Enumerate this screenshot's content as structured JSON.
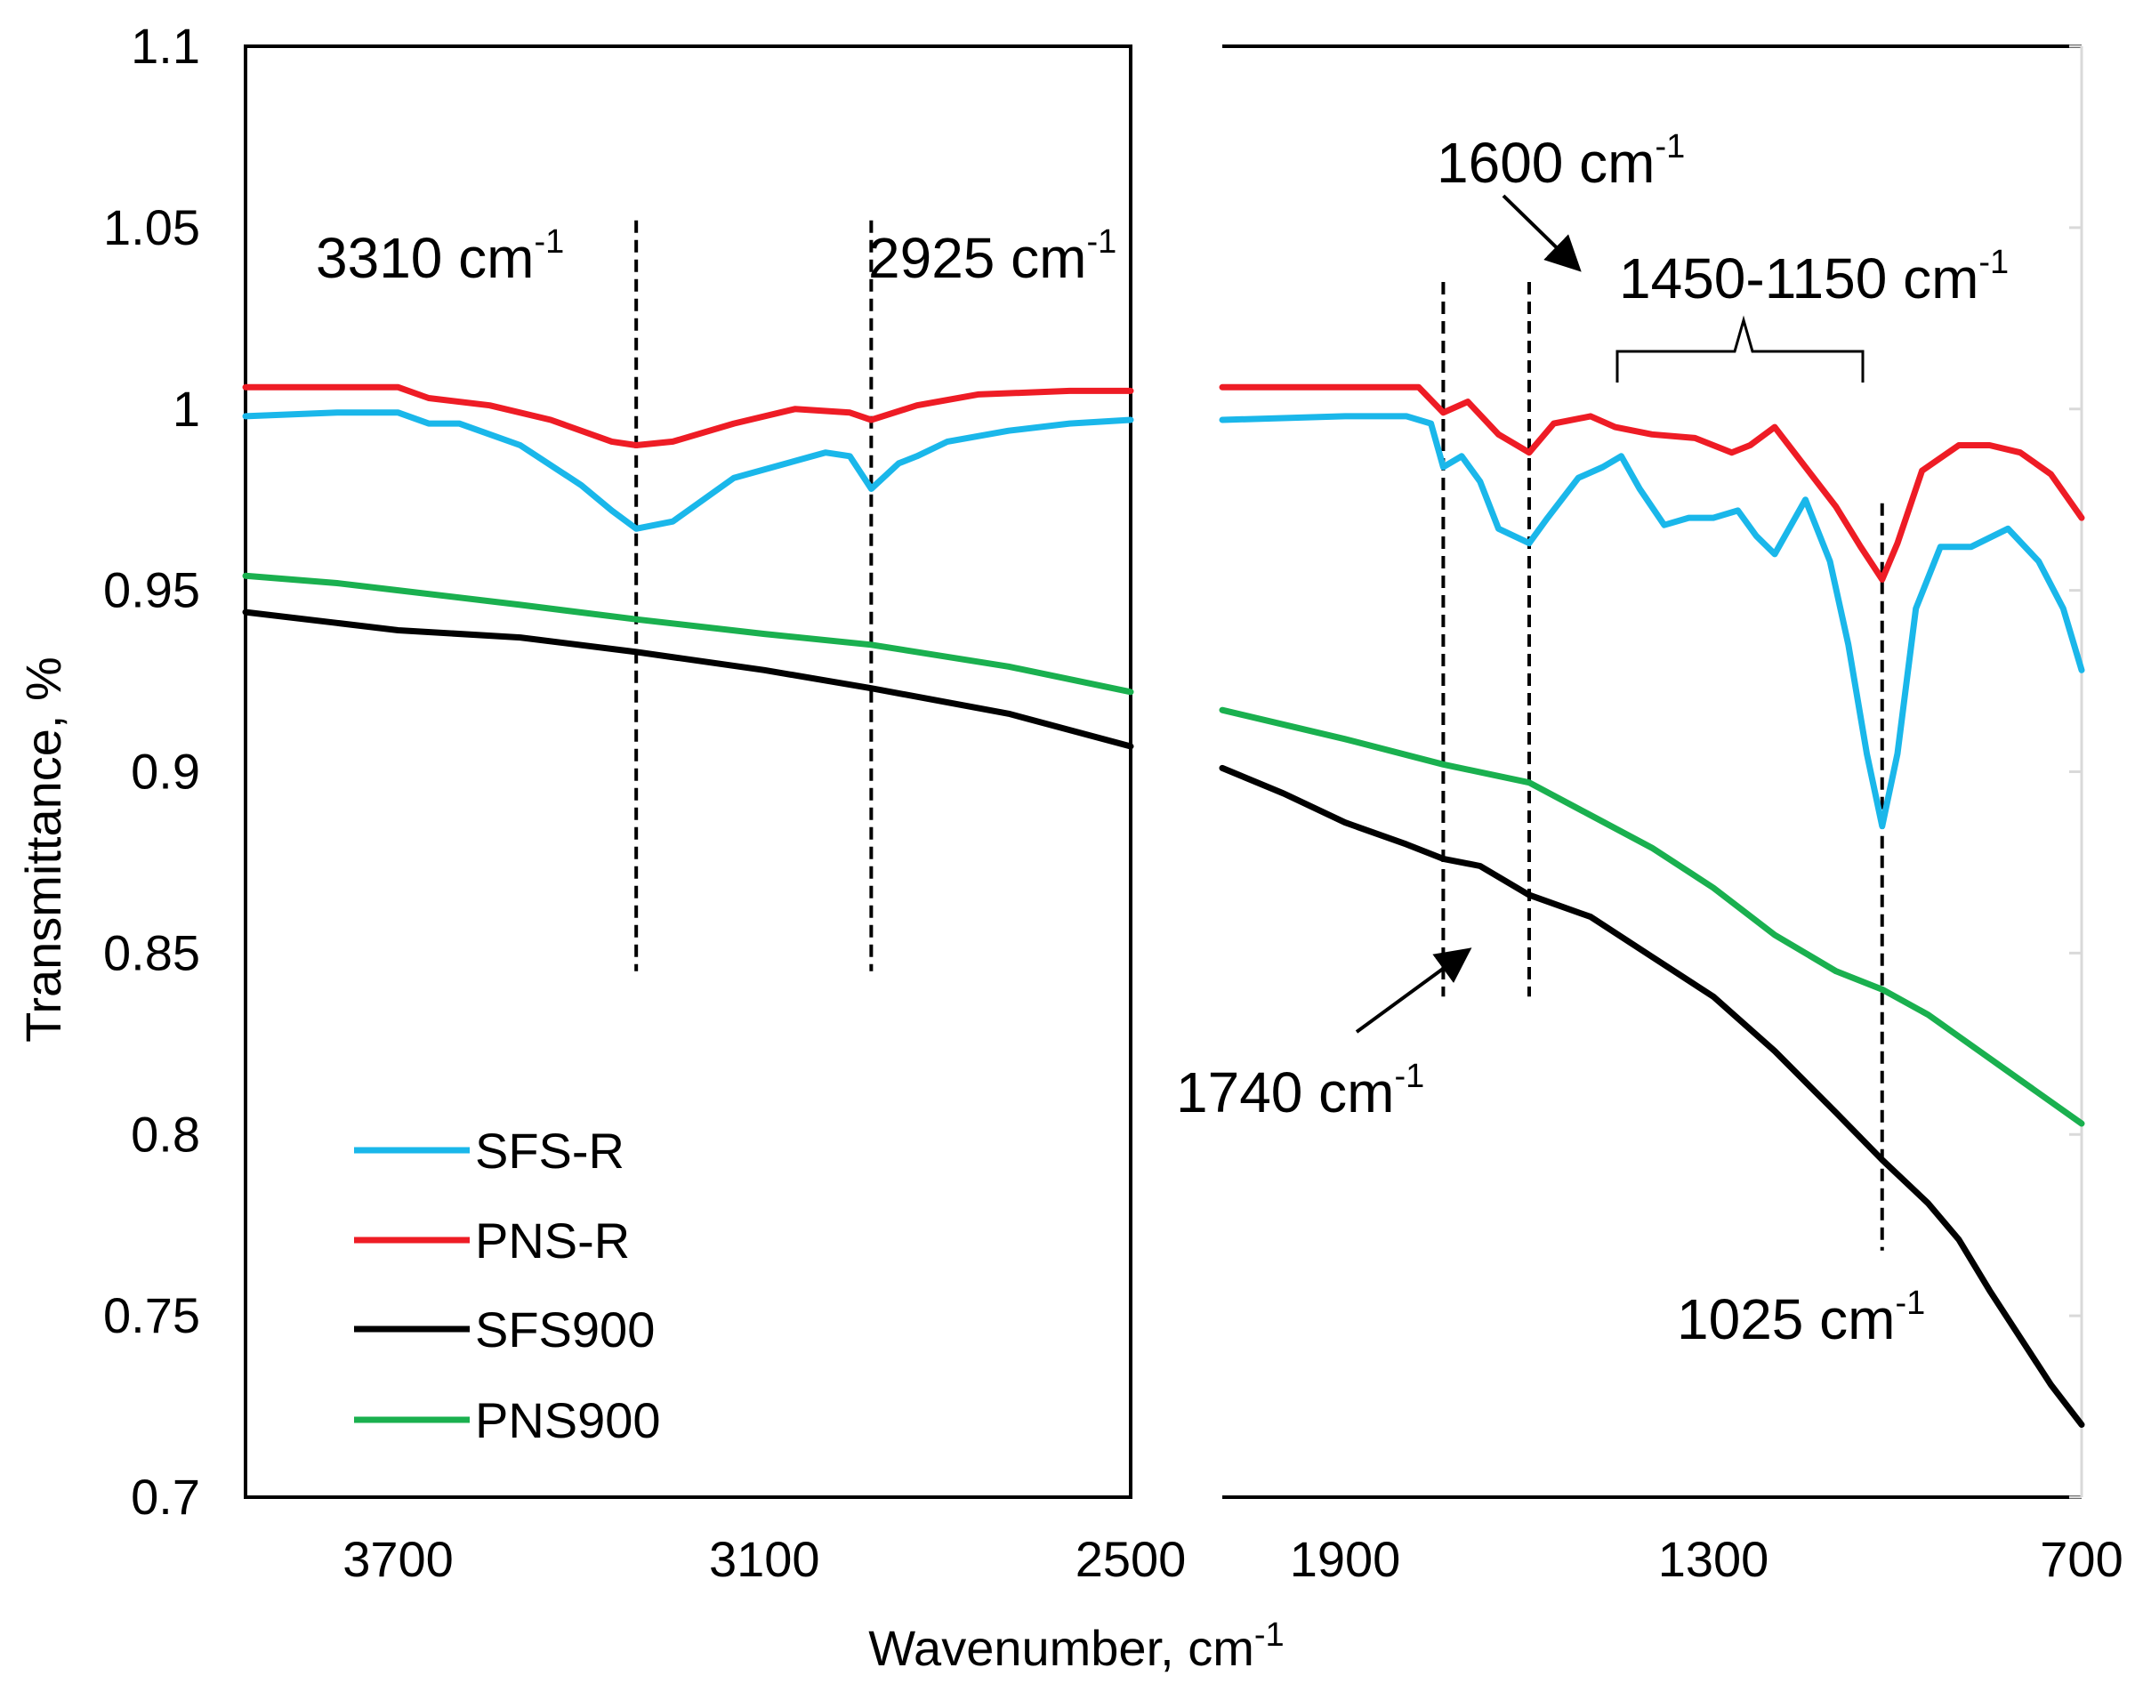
{
  "chart_data": {
    "type": "line",
    "title": "",
    "xlabel": "Wavenumber, cm",
    "xlabel_sup": "-1",
    "ylabel": "Transmittance, %",
    "ylim": [
      0.7,
      1.1
    ],
    "yticks": [
      "0.7",
      "0.75",
      "0.8",
      "0.85",
      "0.9",
      "0.95",
      "1",
      "1.05",
      "1.1"
    ],
    "panels": [
      {
        "name": "left",
        "xlim": [
          3950,
          2500
        ],
        "xticks": [
          {
            "value": 3700,
            "label": "3700"
          },
          {
            "value": 3100,
            "label": "3100"
          },
          {
            "value": 2500,
            "label": "2500"
          }
        ]
      },
      {
        "name": "right",
        "xlim": [
          2100,
          700
        ],
        "xticks": [
          {
            "value": 1900,
            "label": "1900"
          },
          {
            "value": 1300,
            "label": "1300"
          },
          {
            "value": 700,
            "label": "700"
          }
        ]
      }
    ],
    "series": [
      {
        "name": "SFS-R",
        "color": "#1ab7ea",
        "left": [
          [
            3950,
            0.998
          ],
          [
            3800,
            0.999
          ],
          [
            3700,
            0.999
          ],
          [
            3650,
            0.996
          ],
          [
            3600,
            0.996
          ],
          [
            3500,
            0.99
          ],
          [
            3400,
            0.979
          ],
          [
            3350,
            0.972
          ],
          [
            3310,
            0.967
          ],
          [
            3250,
            0.969
          ],
          [
            3150,
            0.981
          ],
          [
            3000,
            0.988
          ],
          [
            2960,
            0.987
          ],
          [
            2925,
            0.978
          ],
          [
            2880,
            0.985
          ],
          [
            2850,
            0.987
          ],
          [
            2800,
            0.991
          ],
          [
            2700,
            0.994
          ],
          [
            2600,
            0.996
          ],
          [
            2500,
            0.997
          ]
        ],
        "right": [
          [
            2100,
            0.997
          ],
          [
            1900,
            0.998
          ],
          [
            1800,
            0.998
          ],
          [
            1760,
            0.996
          ],
          [
            1740,
            0.984
          ],
          [
            1710,
            0.987
          ],
          [
            1680,
            0.98
          ],
          [
            1650,
            0.967
          ],
          [
            1600,
            0.963
          ],
          [
            1570,
            0.97
          ],
          [
            1520,
            0.981
          ],
          [
            1480,
            0.984
          ],
          [
            1450,
            0.987
          ],
          [
            1420,
            0.978
          ],
          [
            1380,
            0.968
          ],
          [
            1340,
            0.97
          ],
          [
            1300,
            0.97
          ],
          [
            1260,
            0.972
          ],
          [
            1230,
            0.965
          ],
          [
            1200,
            0.96
          ],
          [
            1150,
            0.975
          ],
          [
            1110,
            0.958
          ],
          [
            1080,
            0.935
          ],
          [
            1050,
            0.905
          ],
          [
            1025,
            0.885
          ],
          [
            1000,
            0.905
          ],
          [
            970,
            0.945
          ],
          [
            930,
            0.962
          ],
          [
            880,
            0.962
          ],
          [
            820,
            0.967
          ],
          [
            770,
            0.958
          ],
          [
            730,
            0.945
          ],
          [
            700,
            0.928
          ]
        ]
      },
      {
        "name": "PNS-R",
        "color": "#ee1c25",
        "left": [
          [
            3950,
            1.006
          ],
          [
            3800,
            1.006
          ],
          [
            3700,
            1.006
          ],
          [
            3650,
            1.003
          ],
          [
            3550,
            1.001
          ],
          [
            3450,
            0.997
          ],
          [
            3350,
            0.991
          ],
          [
            3310,
            0.99
          ],
          [
            3250,
            0.991
          ],
          [
            3150,
            0.996
          ],
          [
            3050,
            1.0
          ],
          [
            2960,
            0.999
          ],
          [
            2925,
            0.997
          ],
          [
            2850,
            1.001
          ],
          [
            2750,
            1.004
          ],
          [
            2600,
            1.005
          ],
          [
            2500,
            1.005
          ]
        ],
        "right": [
          [
            2100,
            1.006
          ],
          [
            1900,
            1.006
          ],
          [
            1780,
            1.006
          ],
          [
            1740,
            0.999
          ],
          [
            1700,
            1.002
          ],
          [
            1650,
            0.993
          ],
          [
            1600,
            0.988
          ],
          [
            1560,
            0.996
          ],
          [
            1500,
            0.998
          ],
          [
            1460,
            0.995
          ],
          [
            1400,
            0.993
          ],
          [
            1330,
            0.992
          ],
          [
            1270,
            0.988
          ],
          [
            1240,
            0.99
          ],
          [
            1200,
            0.995
          ],
          [
            1150,
            0.984
          ],
          [
            1100,
            0.973
          ],
          [
            1060,
            0.962
          ],
          [
            1025,
            0.953
          ],
          [
            1000,
            0.963
          ],
          [
            960,
            0.983
          ],
          [
            900,
            0.99
          ],
          [
            850,
            0.99
          ],
          [
            800,
            0.988
          ],
          [
            750,
            0.982
          ],
          [
            700,
            0.97
          ]
        ]
      },
      {
        "name": "SFS900",
        "color": "#000000",
        "left": [
          [
            3950,
            0.944
          ],
          [
            3800,
            0.941
          ],
          [
            3700,
            0.939
          ],
          [
            3500,
            0.937
          ],
          [
            3310,
            0.933
          ],
          [
            3100,
            0.928
          ],
          [
            2925,
            0.923
          ],
          [
            2700,
            0.916
          ],
          [
            2500,
            0.907
          ]
        ],
        "right": [
          [
            2100,
            0.901
          ],
          [
            2000,
            0.894
          ],
          [
            1900,
            0.886
          ],
          [
            1800,
            0.88
          ],
          [
            1740,
            0.876
          ],
          [
            1680,
            0.874
          ],
          [
            1600,
            0.866
          ],
          [
            1500,
            0.86
          ],
          [
            1400,
            0.849
          ],
          [
            1300,
            0.838
          ],
          [
            1200,
            0.823
          ],
          [
            1100,
            0.806
          ],
          [
            1025,
            0.793
          ],
          [
            950,
            0.781
          ],
          [
            900,
            0.771
          ],
          [
            850,
            0.757
          ],
          [
            800,
            0.744
          ],
          [
            750,
            0.731
          ],
          [
            700,
            0.72
          ]
        ]
      },
      {
        "name": "PNS900",
        "color": "#1ab04f",
        "left": [
          [
            3950,
            0.954
          ],
          [
            3800,
            0.952
          ],
          [
            3700,
            0.95
          ],
          [
            3500,
            0.946
          ],
          [
            3310,
            0.942
          ],
          [
            3100,
            0.938
          ],
          [
            2925,
            0.935
          ],
          [
            2700,
            0.929
          ],
          [
            2500,
            0.922
          ]
        ],
        "right": [
          [
            2100,
            0.917
          ],
          [
            1900,
            0.909
          ],
          [
            1740,
            0.902
          ],
          [
            1600,
            0.897
          ],
          [
            1500,
            0.888
          ],
          [
            1400,
            0.879
          ],
          [
            1300,
            0.868
          ],
          [
            1200,
            0.855
          ],
          [
            1100,
            0.845
          ],
          [
            1025,
            0.84
          ],
          [
            950,
            0.833
          ],
          [
            900,
            0.827
          ],
          [
            800,
            0.815
          ],
          [
            700,
            0.803
          ]
        ]
      }
    ],
    "annotations": [
      {
        "text": "3310 cm",
        "sup": "-1",
        "x": 3310
      },
      {
        "text": "2925 cm",
        "sup": "-1",
        "x": 2925
      },
      {
        "text": "1600 cm",
        "sup": "-1",
        "x": 1600
      },
      {
        "text": "1450-1150 cm",
        "sup": "-1",
        "x_from": 1450,
        "x_to": 1150
      },
      {
        "text": "1740 cm",
        "sup": "-1",
        "x": 1740
      },
      {
        "text": "1025 cm",
        "sup": "-1",
        "x": 1025
      }
    ],
    "legend": {
      "position": "bottom-left",
      "entries": [
        "SFS-R",
        "PNS-R",
        "SFS900",
        "PNS900"
      ]
    }
  }
}
